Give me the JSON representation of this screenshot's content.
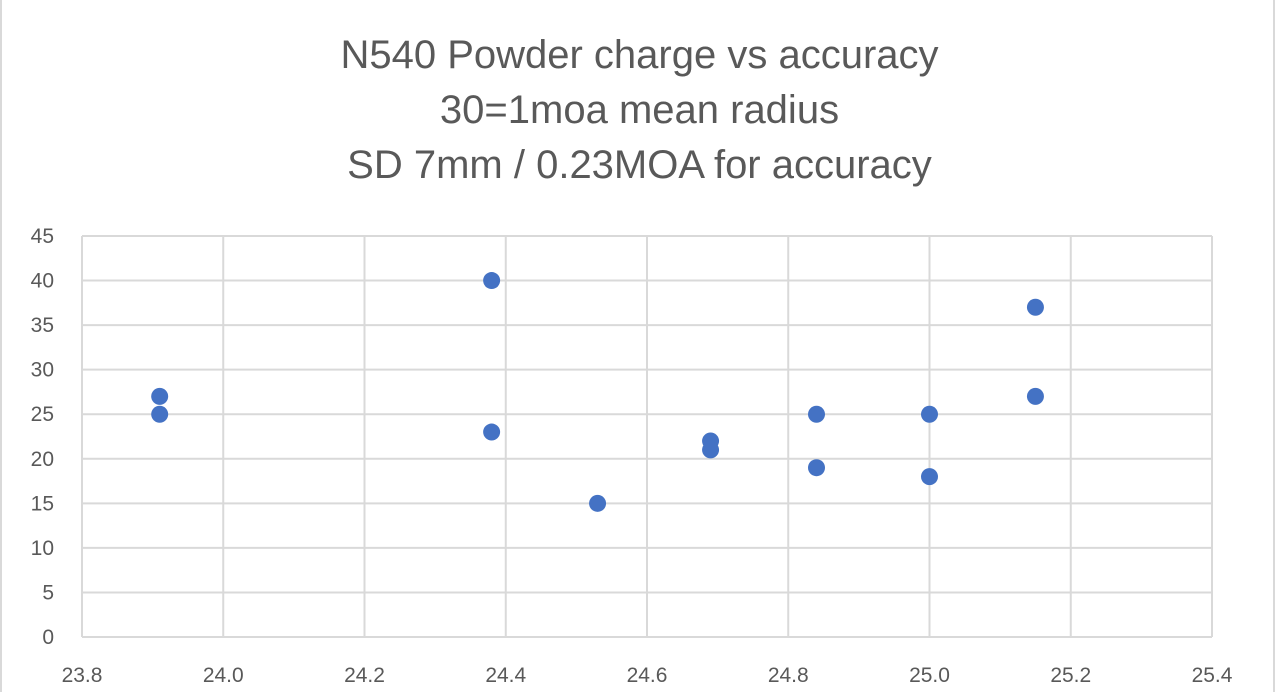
{
  "chart_data": {
    "type": "scatter",
    "title_lines": [
      "N540 Powder charge vs accuracy",
      "30=1moa mean radius",
      "SD 7mm / 0.23MOA for accuracy"
    ],
    "xlabel": "",
    "ylabel": "",
    "xlim": [
      23.8,
      25.4
    ],
    "ylim": [
      0,
      45
    ],
    "x_ticks": [
      23.8,
      24.0,
      24.2,
      24.4,
      24.6,
      24.8,
      25.0,
      25.2,
      25.4
    ],
    "x_tick_labels": [
      "23.8",
      "24.0",
      "24.2",
      "24.4",
      "24.6",
      "24.8",
      "25.0",
      "25.2",
      "25.4"
    ],
    "y_ticks": [
      0,
      5,
      10,
      15,
      20,
      25,
      30,
      35,
      40,
      45
    ],
    "y_tick_labels": [
      "0",
      "5",
      "10",
      "15",
      "20",
      "25",
      "30",
      "35",
      "40",
      "45"
    ],
    "grid": true,
    "legend": "none",
    "series": [
      {
        "color": "#4472c4",
        "points": [
          {
            "x": 23.91,
            "y": 27
          },
          {
            "x": 23.91,
            "y": 25
          },
          {
            "x": 24.38,
            "y": 40
          },
          {
            "x": 24.38,
            "y": 23
          },
          {
            "x": 24.53,
            "y": 15
          },
          {
            "x": 24.69,
            "y": 22
          },
          {
            "x": 24.69,
            "y": 21
          },
          {
            "x": 24.84,
            "y": 25
          },
          {
            "x": 24.84,
            "y": 19
          },
          {
            "x": 25.0,
            "y": 25
          },
          {
            "x": 25.0,
            "y": 18
          },
          {
            "x": 25.15,
            "y": 37
          },
          {
            "x": 25.15,
            "y": 27
          }
        ]
      }
    ]
  },
  "colors": {
    "text": "#595959",
    "grid": "#d9d9d9",
    "marker": "#4472c4"
  }
}
